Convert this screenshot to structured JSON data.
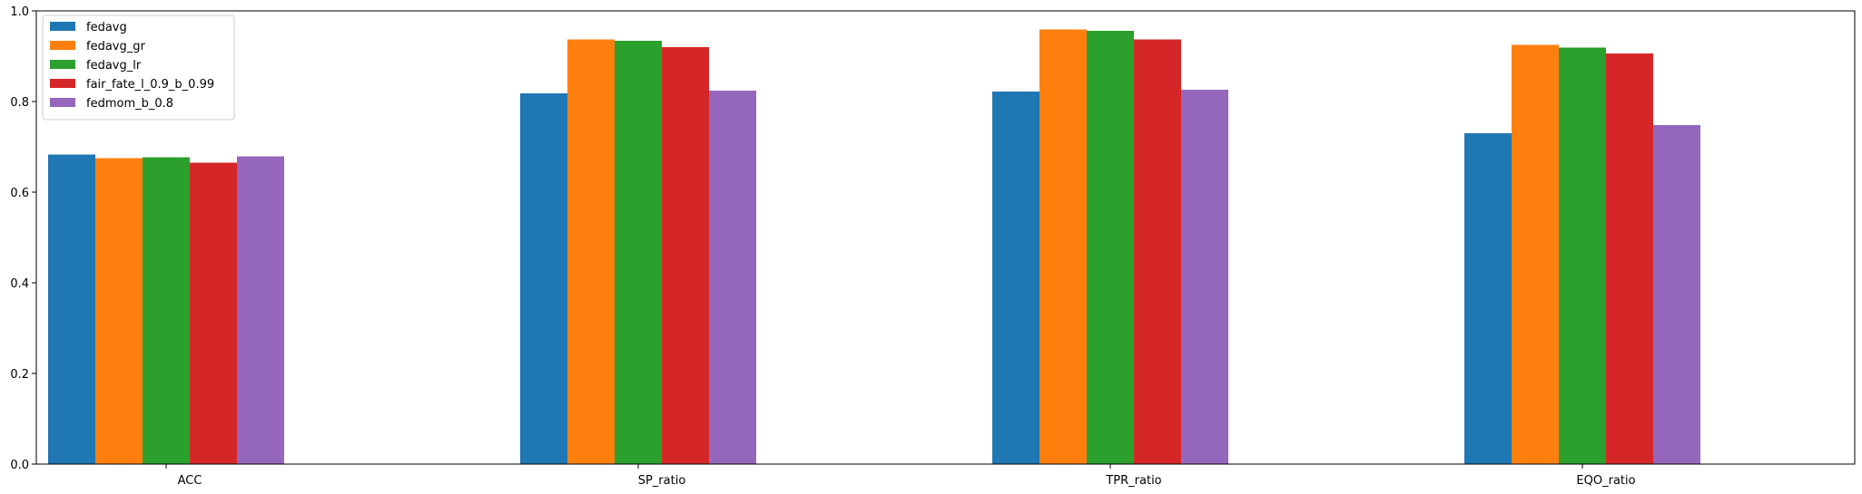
{
  "chart_data": {
    "type": "bar",
    "categories": [
      "ACC",
      "SP_ratio",
      "TPR_ratio",
      "EQO_ratio"
    ],
    "series": [
      {
        "name": "fedavg",
        "color": "#1f77b4",
        "values": [
          0.683,
          0.818,
          0.822,
          0.73
        ]
      },
      {
        "name": "fedavg_gr",
        "color": "#ff7f0e",
        "values": [
          0.675,
          0.937,
          0.959,
          0.925
        ]
      },
      {
        "name": "fedavg_lr",
        "color": "#2ca02c",
        "values": [
          0.677,
          0.934,
          0.956,
          0.919
        ]
      },
      {
        "name": "fair_fate_l_0.9_b_0.99",
        "color": "#d62728",
        "values": [
          0.665,
          0.92,
          0.937,
          0.906
        ]
      },
      {
        "name": "fedmom_b_0.8",
        "color": "#9467bd",
        "values": [
          0.679,
          0.824,
          0.826,
          0.748
        ]
      }
    ],
    "yticks": [
      "0.0",
      "0.2",
      "0.4",
      "0.6",
      "0.8",
      "1.0"
    ],
    "ylim": [
      0,
      1.0
    ],
    "title": "",
    "xlabel": "",
    "ylabel": "",
    "legend_position": "top-left",
    "grid": false
  }
}
